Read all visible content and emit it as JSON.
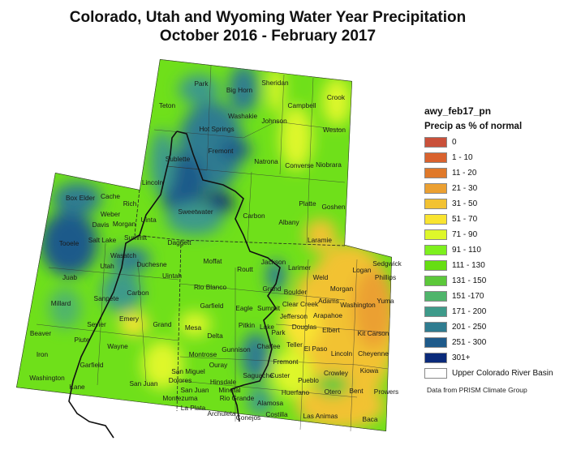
{
  "title": {
    "line1": "Colorado, Utah and Wyoming Water Year Precipitation",
    "line2": "October 2016 - February 2017"
  },
  "legend": {
    "layer_name": "awy_feb17_pn",
    "subtitle": "Precip as % of normal",
    "classes": [
      {
        "label": "0",
        "color": "#c9503a"
      },
      {
        "label": "1 - 10",
        "color": "#d9622e"
      },
      {
        "label": "11 - 20",
        "color": "#e0792a"
      },
      {
        "label": "21 - 30",
        "color": "#eba032"
      },
      {
        "label": "31 - 50",
        "color": "#f2c232"
      },
      {
        "label": "51 - 70",
        "color": "#f9e430"
      },
      {
        "label": "71 - 90",
        "color": "#def72a"
      },
      {
        "label": "91 - 110",
        "color": "#7ef01e"
      },
      {
        "label": "111 - 130",
        "color": "#66de12"
      },
      {
        "label": "131 - 150",
        "color": "#5cc83a"
      },
      {
        "label": "151 -170",
        "color": "#4fb56b"
      },
      {
        "label": "171 - 200",
        "color": "#3e9a8a"
      },
      {
        "label": "201 - 250",
        "color": "#2f7c90"
      },
      {
        "label": "251 - 300",
        "color": "#1e5a8a"
      },
      {
        "label": "301+",
        "color": "#0a2a7a"
      },
      {
        "label": "Upper Colorado River Basin",
        "color": "#ffffff"
      }
    ]
  },
  "credit": "Data from PRISM Climate Group",
  "counties": [
    "Park",
    "Big Horn",
    "Sheridan",
    "Crook",
    "Teton",
    "Washakie",
    "Johnson",
    "Campbell",
    "Hot Springs",
    "Weston",
    "Fremont",
    "Sublette",
    "Natrona",
    "Converse",
    "Niobrara",
    "Lincoln",
    "Box Elder",
    "Cache",
    "Rich",
    "Platte",
    "Goshen",
    "Weber",
    "Sweetwater",
    "Carbon",
    "Davis",
    "Morgan",
    "Uinta",
    "Albany",
    "Tooele",
    "Salt Lake",
    "Summit",
    "Daggett",
    "Laramie",
    "Wasatch",
    "Duchesne",
    "Moffat",
    "Routt",
    "Jackson",
    "Utah",
    "Uintah",
    "Juab",
    "Rio Blanco",
    "Carbon",
    "Millard",
    "Sanpete",
    "Garfield",
    "Eagle",
    "Emery",
    "Sevier",
    "Grand",
    "Mesa",
    "Pitkin",
    "Lake",
    "Beaver",
    "Piute",
    "Delta",
    "Wayne",
    "Gunnison",
    "Chaffee",
    "Iron",
    "Montrose",
    "Garfield",
    "Ouray",
    "San Miguel",
    "Saguache",
    "Washington",
    "Dolores",
    "Hinsdale",
    "San Juan",
    "San Juan",
    "Kane",
    "Mineral",
    "Rio Grande",
    "Alamosa",
    "Montezuma",
    "La Plata",
    "Archuleta",
    "Conejos",
    "Costilla",
    "Grand",
    "Larimer",
    "Weld",
    "Logan",
    "Sedgwick",
    "Phillips",
    "Morgan",
    "Boulder",
    "Clear Creek",
    "Adams",
    "Washington",
    "Yuma",
    "Summit",
    "Jefferson",
    "Arapahoe",
    "Douglas",
    "Elbert",
    "Kit Carson",
    "Park",
    "Teller",
    "El Paso",
    "Lincoln",
    "Cheyenne",
    "Fremont",
    "Kiowa",
    "Custer",
    "Pueblo",
    "Crowley",
    "Otero",
    "Bent",
    "Prowers",
    "Huerfano",
    "Las Animas",
    "Baca"
  ]
}
